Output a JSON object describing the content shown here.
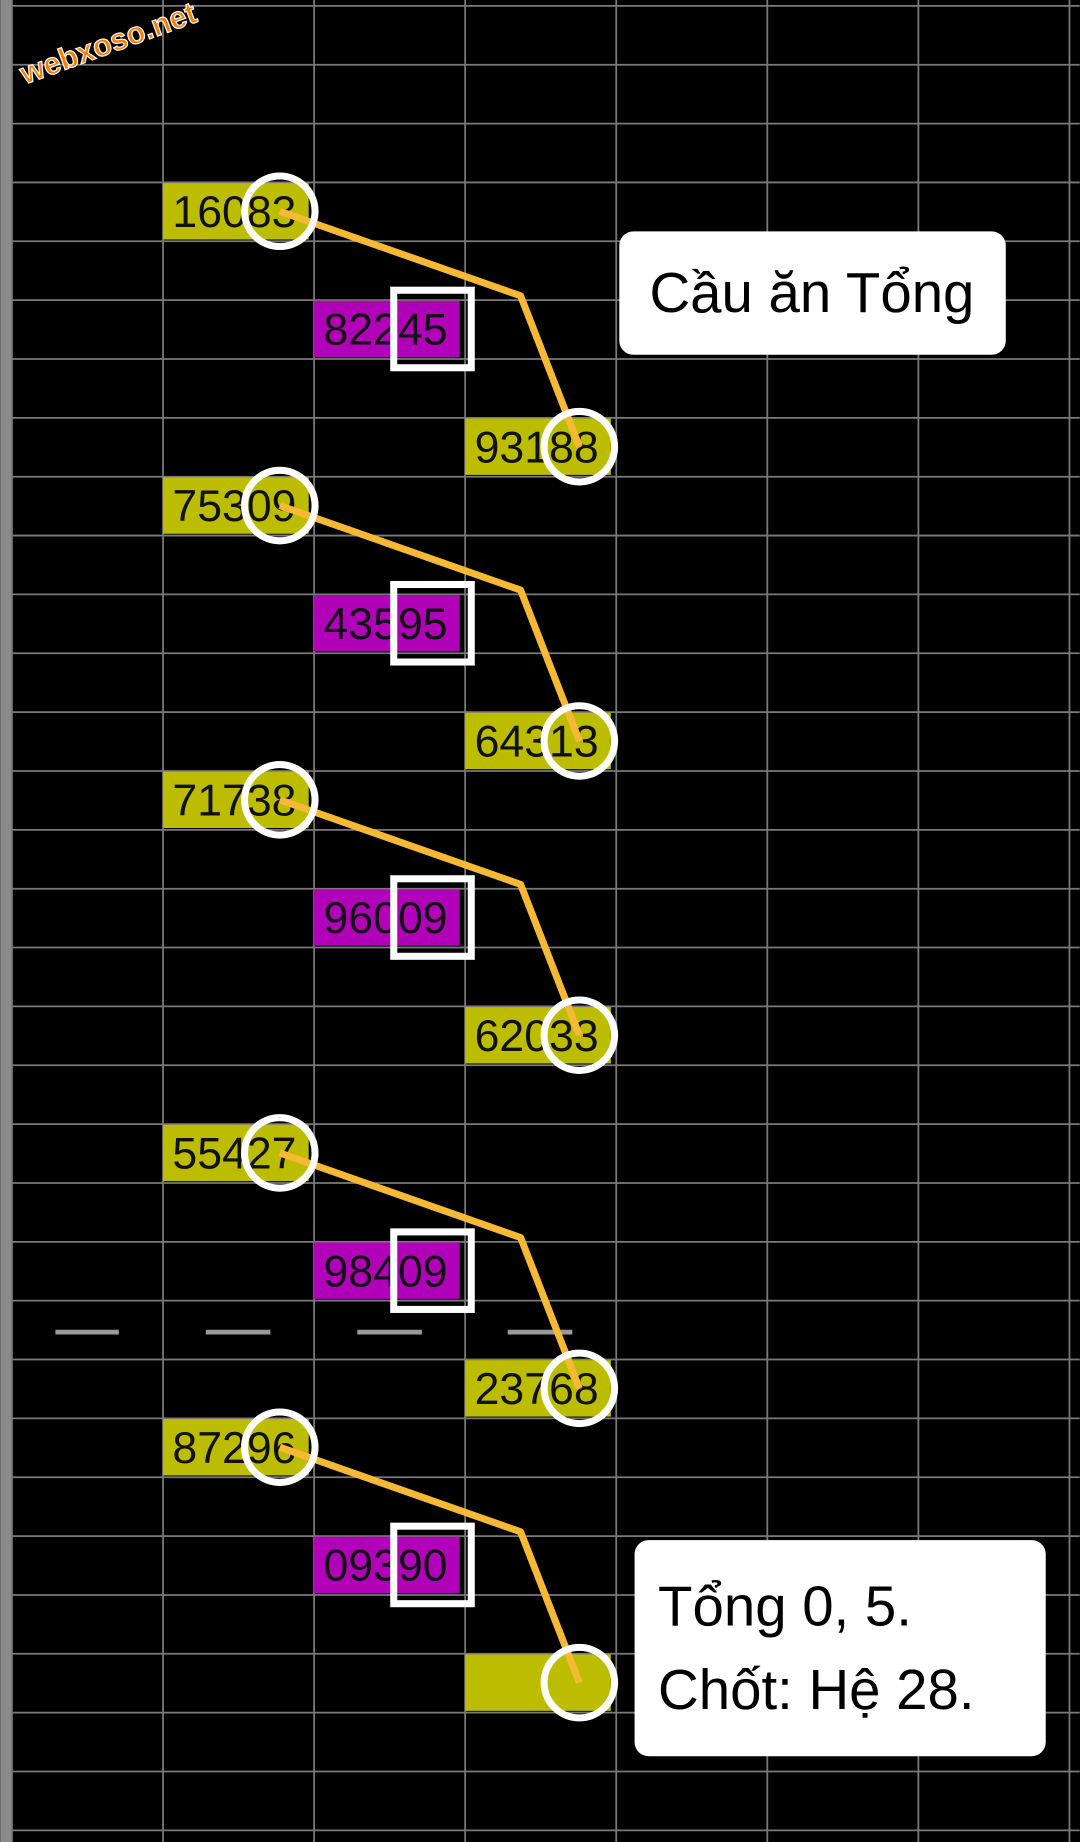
{
  "watermark": "webxoso.net",
  "groups": [
    {
      "numbers": [
        "16083",
        "82245",
        "93188"
      ]
    },
    {
      "numbers": [
        "75309",
        "43595",
        "64313"
      ]
    },
    {
      "numbers": [
        "71738",
        "96009",
        "62033"
      ]
    },
    {
      "numbers": [
        "55427",
        "98409",
        "23768"
      ]
    },
    {
      "numbers": [
        "87296",
        "09390"
      ]
    }
  ],
  "title_note": "Cầu ăn Tổng",
  "conclusion": {
    "lines": [
      "Tổng 0, 5.",
      "Chốt: Hệ 28."
    ]
  }
}
